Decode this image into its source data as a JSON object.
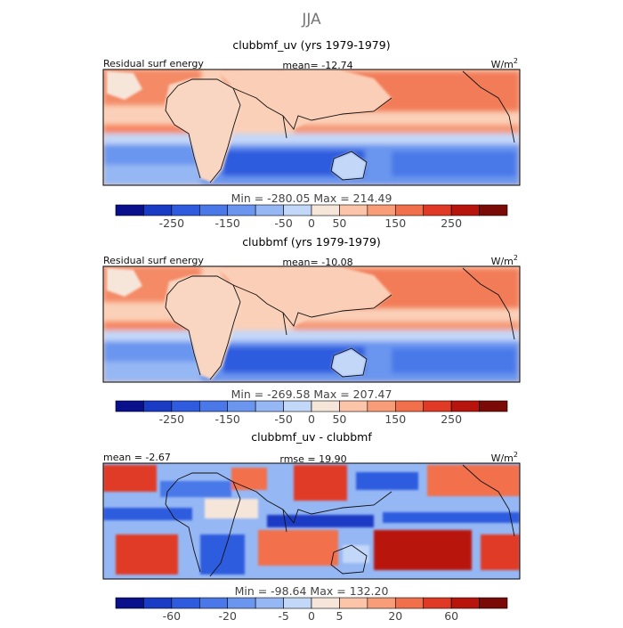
{
  "chart_data": {
    "type": "heatmap",
    "title": "JJA",
    "panels": [
      {
        "title": "clubbmf_uv (yrs 1979-1979)",
        "left_label": "Residual surf energy",
        "center_label": "mean= -12.74",
        "units": "W/m",
        "units_sup": "2",
        "stats": "Min = -280.05 Max = 214.49",
        "colorbar": {
          "colors": [
            "#0a0f8c",
            "#1a3bc4",
            "#2f5bde",
            "#4a78e8",
            "#6b96ef",
            "#95b7f4",
            "#c3d7f8",
            "#f6e6da",
            "#fcc4a8",
            "#f99d78",
            "#f26f4c",
            "#e03a26",
            "#b8140e",
            "#7a0a05"
          ],
          "tick_labels": [
            "-250",
            "-150",
            "-50",
            "0",
            "50",
            "150",
            "250"
          ],
          "tick_boundaries": [
            2,
            4,
            6,
            7,
            8,
            10,
            12
          ]
        },
        "field_range": [
          -280.05,
          214.49
        ]
      },
      {
        "title": "clubbmf (yrs 1979-1979)",
        "left_label": "Residual surf energy",
        "center_label": "mean= -10.08",
        "units": "W/m",
        "units_sup": "2",
        "stats": "Min = -269.58 Max = 207.47",
        "colorbar": {
          "colors": [
            "#0a0f8c",
            "#1a3bc4",
            "#2f5bde",
            "#4a78e8",
            "#6b96ef",
            "#95b7f4",
            "#c3d7f8",
            "#f6e6da",
            "#fcc4a8",
            "#f99d78",
            "#f26f4c",
            "#e03a26",
            "#b8140e",
            "#7a0a05"
          ],
          "tick_labels": [
            "-250",
            "-150",
            "-50",
            "0",
            "50",
            "150",
            "250"
          ],
          "tick_boundaries": [
            2,
            4,
            6,
            7,
            8,
            10,
            12
          ]
        },
        "field_range": [
          -269.58,
          207.47
        ]
      },
      {
        "title": "clubbmf_uv - clubbmf",
        "left_label": "mean = -2.67",
        "center_label": "rmse = 19.90",
        "units": "W/m",
        "units_sup": "2",
        "stats": "Min = -98.64 Max = 132.20",
        "colorbar": {
          "colors": [
            "#0a0f8c",
            "#1a3bc4",
            "#2f5bde",
            "#4a78e8",
            "#6b96ef",
            "#95b7f4",
            "#c3d7f8",
            "#f6e6da",
            "#fcc4a8",
            "#f99d78",
            "#f26f4c",
            "#e03a26",
            "#b8140e",
            "#7a0a05"
          ],
          "tick_labels": [
            "-60",
            "-20",
            "-5",
            "0",
            "5",
            "20",
            "60"
          ],
          "tick_boundaries": [
            2,
            4,
            6,
            7,
            8,
            10,
            12
          ]
        },
        "field_range": [
          -98.64,
          132.2
        ]
      }
    ]
  }
}
